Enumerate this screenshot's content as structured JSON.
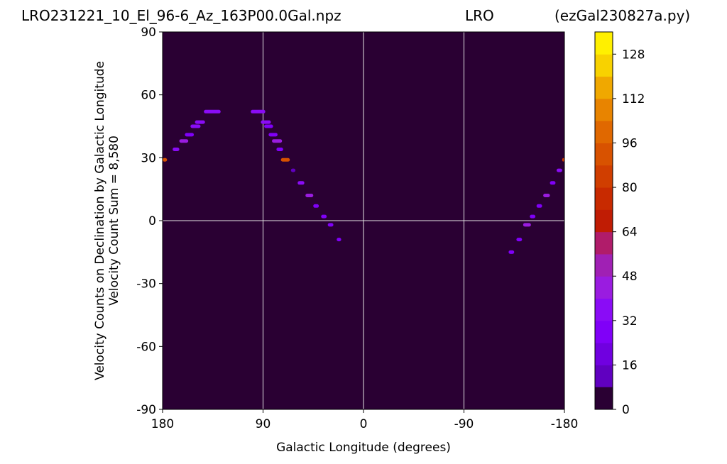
{
  "titles": {
    "left": "LRO231221_10_El_96-6_Az_163P00.0Gal.npz",
    "center": "LRO",
    "right": "(ezGal230827a.py)"
  },
  "chart_data": {
    "type": "heatmap",
    "xlabel": "Galactic Longitude (degrees)",
    "ylabel_line1": "Velocity Counts on Declination by Galactic Longitude",
    "ylabel_line2": "Velocity Count Sum = 8,580",
    "xlim": [
      180,
      -180
    ],
    "ylim": [
      -90,
      90
    ],
    "x_ticks": [
      180,
      90,
      0,
      -90,
      -180
    ],
    "x_tick_labels": [
      "180",
      "90",
      "0",
      "-90",
      "-180"
    ],
    "y_ticks": [
      90,
      60,
      30,
      0,
      -30,
      -60,
      -90
    ],
    "y_tick_labels": [
      "90",
      "60",
      "30",
      "0",
      "-30",
      "-60",
      "-90"
    ],
    "grid_lines": {
      "vertical": [
        90,
        0,
        -90
      ],
      "horizontal": [
        0
      ]
    },
    "background_value": 0,
    "colorbar": {
      "min": 0,
      "max": 136,
      "levels": 17,
      "ticks": [
        0,
        16,
        32,
        48,
        64,
        80,
        96,
        112,
        128
      ],
      "tick_labels": [
        "0",
        "16",
        "32",
        "48",
        "64",
        "80",
        "96",
        "112",
        "128"
      ],
      "colors": [
        "#2a0033",
        "#4b008a",
        "#6000c0",
        "#7000e0",
        "#8000f8",
        "#8a0cf6",
        "#9a1ce0",
        "#a020b4",
        "#b01c6a",
        "#c01c04",
        "#c82a00",
        "#d03e00",
        "#d85200",
        "#e06800",
        "#e88400",
        "#f0a800",
        "#f8d200",
        "#fff000"
      ]
    },
    "points": [
      {
        "x": 180,
        "x2": 176,
        "y": 29,
        "v": 100
      },
      {
        "x": 171,
        "x2": 165,
        "y": 34,
        "v": 40
      },
      {
        "x": 165,
        "x2": 157,
        "y": 38,
        "v": 50
      },
      {
        "x": 160,
        "x2": 152,
        "y": 41,
        "v": 38
      },
      {
        "x": 155,
        "x2": 146,
        "y": 45,
        "v": 40
      },
      {
        "x": 151,
        "x2": 142,
        "y": 47,
        "v": 40
      },
      {
        "x": 143,
        "x2": 128,
        "y": 52,
        "v": 40
      },
      {
        "x": 101,
        "x2": 88,
        "y": 52,
        "v": 40
      },
      {
        "x": 92,
        "x2": 83,
        "y": 47,
        "v": 40
      },
      {
        "x": 89,
        "x2": 81,
        "y": 45,
        "v": 38
      },
      {
        "x": 85,
        "x2": 77,
        "y": 41,
        "v": 36
      },
      {
        "x": 82,
        "x2": 73,
        "y": 38,
        "v": 48
      },
      {
        "x": 78,
        "x2": 72,
        "y": 34,
        "v": 38
      },
      {
        "x": 74,
        "x2": 66,
        "y": 29,
        "v": 96
      },
      {
        "x": 65,
        "x2": 61,
        "y": 24,
        "v": 18
      },
      {
        "x": 59,
        "x2": 53,
        "y": 18,
        "v": 40
      },
      {
        "x": 52,
        "x2": 45,
        "y": 12,
        "v": 48
      },
      {
        "x": 45,
        "x2": 40,
        "y": 7,
        "v": 36
      },
      {
        "x": 38,
        "x2": 33,
        "y": 2,
        "v": 38
      },
      {
        "x": 32,
        "x2": 27,
        "y": -2,
        "v": 38
      },
      {
        "x": 24,
        "x2": 20,
        "y": -9,
        "v": 38
      },
      {
        "x": -130,
        "x2": -135,
        "y": -15,
        "v": 38
      },
      {
        "x": -137,
        "x2": -142,
        "y": -9,
        "v": 36
      },
      {
        "x": -143,
        "x2": -150,
        "y": -2,
        "v": 48
      },
      {
        "x": -149,
        "x2": -154,
        "y": 2,
        "v": 38
      },
      {
        "x": -155,
        "x2": -160,
        "y": 7,
        "v": 36
      },
      {
        "x": -161,
        "x2": -167,
        "y": 12,
        "v": 48
      },
      {
        "x": -167,
        "x2": -172,
        "y": 18,
        "v": 38
      },
      {
        "x": -173,
        "x2": -178,
        "y": 24,
        "v": 40
      },
      {
        "x": -178,
        "x2": -180,
        "y": 29,
        "v": 90
      }
    ]
  }
}
